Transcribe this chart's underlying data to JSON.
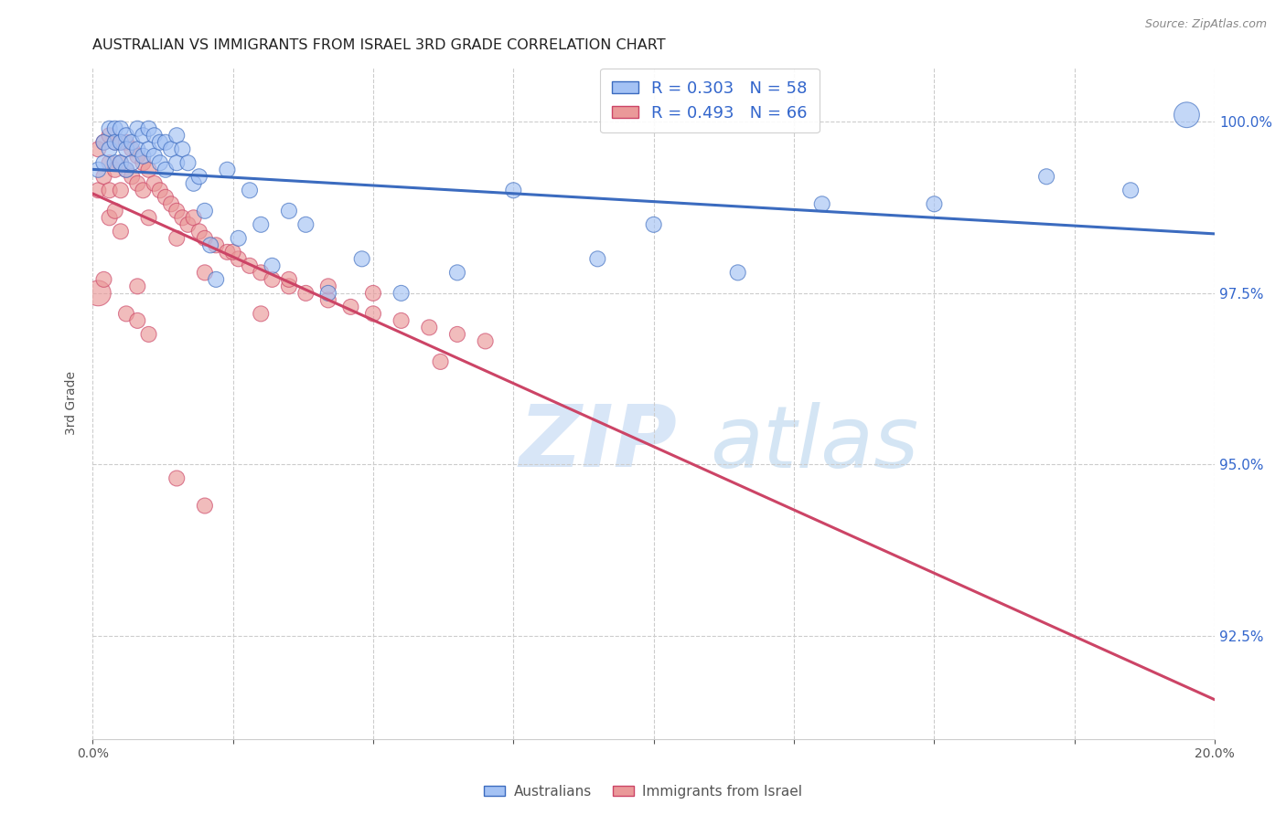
{
  "title": "AUSTRALIAN VS IMMIGRANTS FROM ISRAEL 3RD GRADE CORRELATION CHART",
  "source": "Source: ZipAtlas.com",
  "ylabel": "3rd Grade",
  "xlim": [
    0.0,
    0.2
  ],
  "ylim": [
    0.91,
    1.008
  ],
  "yticks": [
    0.925,
    0.95,
    0.975,
    1.0
  ],
  "legend_r_blue": "R = 0.303",
  "legend_n_blue": "N = 58",
  "legend_r_pink": "R = 0.493",
  "legend_n_pink": "N = 66",
  "blue_color": "#a4c2f4",
  "pink_color": "#ea9999",
  "blue_line_color": "#3b6bbf",
  "pink_line_color": "#cc4466",
  "blue_scatter_x": [
    0.001,
    0.002,
    0.002,
    0.003,
    0.003,
    0.004,
    0.004,
    0.004,
    0.005,
    0.005,
    0.005,
    0.006,
    0.006,
    0.006,
    0.007,
    0.007,
    0.008,
    0.008,
    0.009,
    0.009,
    0.01,
    0.01,
    0.011,
    0.011,
    0.012,
    0.012,
    0.013,
    0.013,
    0.014,
    0.015,
    0.015,
    0.016,
    0.017,
    0.018,
    0.019,
    0.02,
    0.021,
    0.022,
    0.024,
    0.026,
    0.028,
    0.03,
    0.032,
    0.035,
    0.038,
    0.042,
    0.048,
    0.055,
    0.065,
    0.075,
    0.09,
    0.1,
    0.115,
    0.13,
    0.15,
    0.17,
    0.185,
    0.195
  ],
  "blue_scatter_y": [
    0.993,
    0.997,
    0.994,
    0.999,
    0.996,
    0.999,
    0.997,
    0.994,
    0.999,
    0.997,
    0.994,
    0.998,
    0.996,
    0.993,
    0.997,
    0.994,
    0.999,
    0.996,
    0.998,
    0.995,
    0.999,
    0.996,
    0.998,
    0.995,
    0.997,
    0.994,
    0.997,
    0.993,
    0.996,
    0.998,
    0.994,
    0.996,
    0.994,
    0.991,
    0.992,
    0.987,
    0.982,
    0.977,
    0.993,
    0.983,
    0.99,
    0.985,
    0.979,
    0.987,
    0.985,
    0.975,
    0.98,
    0.975,
    0.978,
    0.99,
    0.98,
    0.985,
    0.978,
    0.988,
    0.988,
    0.992,
    0.99,
    1.001
  ],
  "blue_scatter_size": [
    150,
    150,
    150,
    150,
    150,
    150,
    150,
    150,
    150,
    150,
    150,
    150,
    150,
    150,
    150,
    150,
    150,
    150,
    150,
    150,
    150,
    150,
    150,
    150,
    150,
    150,
    150,
    150,
    150,
    150,
    150,
    150,
    150,
    150,
    150,
    150,
    150,
    150,
    150,
    150,
    150,
    150,
    150,
    150,
    150,
    150,
    150,
    150,
    150,
    150,
    150,
    150,
    150,
    150,
    150,
    150,
    150,
    400
  ],
  "pink_scatter_x": [
    0.001,
    0.001,
    0.002,
    0.002,
    0.003,
    0.003,
    0.003,
    0.004,
    0.004,
    0.005,
    0.005,
    0.005,
    0.006,
    0.006,
    0.007,
    0.007,
    0.008,
    0.008,
    0.009,
    0.009,
    0.01,
    0.011,
    0.012,
    0.013,
    0.014,
    0.015,
    0.016,
    0.017,
    0.018,
    0.019,
    0.02,
    0.022,
    0.024,
    0.026,
    0.028,
    0.03,
    0.032,
    0.035,
    0.038,
    0.042,
    0.046,
    0.05,
    0.055,
    0.06,
    0.065,
    0.07,
    0.02,
    0.035,
    0.042,
    0.05,
    0.062,
    0.03,
    0.025,
    0.015,
    0.01,
    0.008,
    0.005,
    0.003,
    0.001,
    0.002,
    0.004,
    0.006,
    0.008,
    0.01,
    0.015,
    0.02
  ],
  "pink_scatter_y": [
    0.996,
    0.99,
    0.997,
    0.992,
    0.998,
    0.994,
    0.99,
    0.997,
    0.993,
    0.997,
    0.994,
    0.99,
    0.997,
    0.993,
    0.996,
    0.992,
    0.995,
    0.991,
    0.994,
    0.99,
    0.993,
    0.991,
    0.99,
    0.989,
    0.988,
    0.987,
    0.986,
    0.985,
    0.986,
    0.984,
    0.983,
    0.982,
    0.981,
    0.98,
    0.979,
    0.978,
    0.977,
    0.976,
    0.975,
    0.974,
    0.973,
    0.972,
    0.971,
    0.97,
    0.969,
    0.968,
    0.978,
    0.977,
    0.976,
    0.975,
    0.965,
    0.972,
    0.981,
    0.983,
    0.986,
    0.976,
    0.984,
    0.986,
    0.975,
    0.977,
    0.987,
    0.972,
    0.971,
    0.969,
    0.948,
    0.944
  ],
  "pink_scatter_size": [
    150,
    150,
    150,
    150,
    150,
    150,
    150,
    150,
    150,
    150,
    150,
    150,
    150,
    150,
    150,
    150,
    150,
    150,
    150,
    150,
    150,
    150,
    150,
    150,
    150,
    150,
    150,
    150,
    150,
    150,
    150,
    150,
    150,
    150,
    150,
    150,
    150,
    150,
    150,
    150,
    150,
    150,
    150,
    150,
    150,
    150,
    150,
    150,
    150,
    150,
    150,
    150,
    150,
    150,
    150,
    150,
    150,
    150,
    400,
    150,
    150,
    150,
    150,
    150,
    150,
    150
  ],
  "watermark_zip": "ZIP",
  "watermark_atlas": "atlas",
  "background_color": "#ffffff",
  "grid_color": "#cccccc"
}
